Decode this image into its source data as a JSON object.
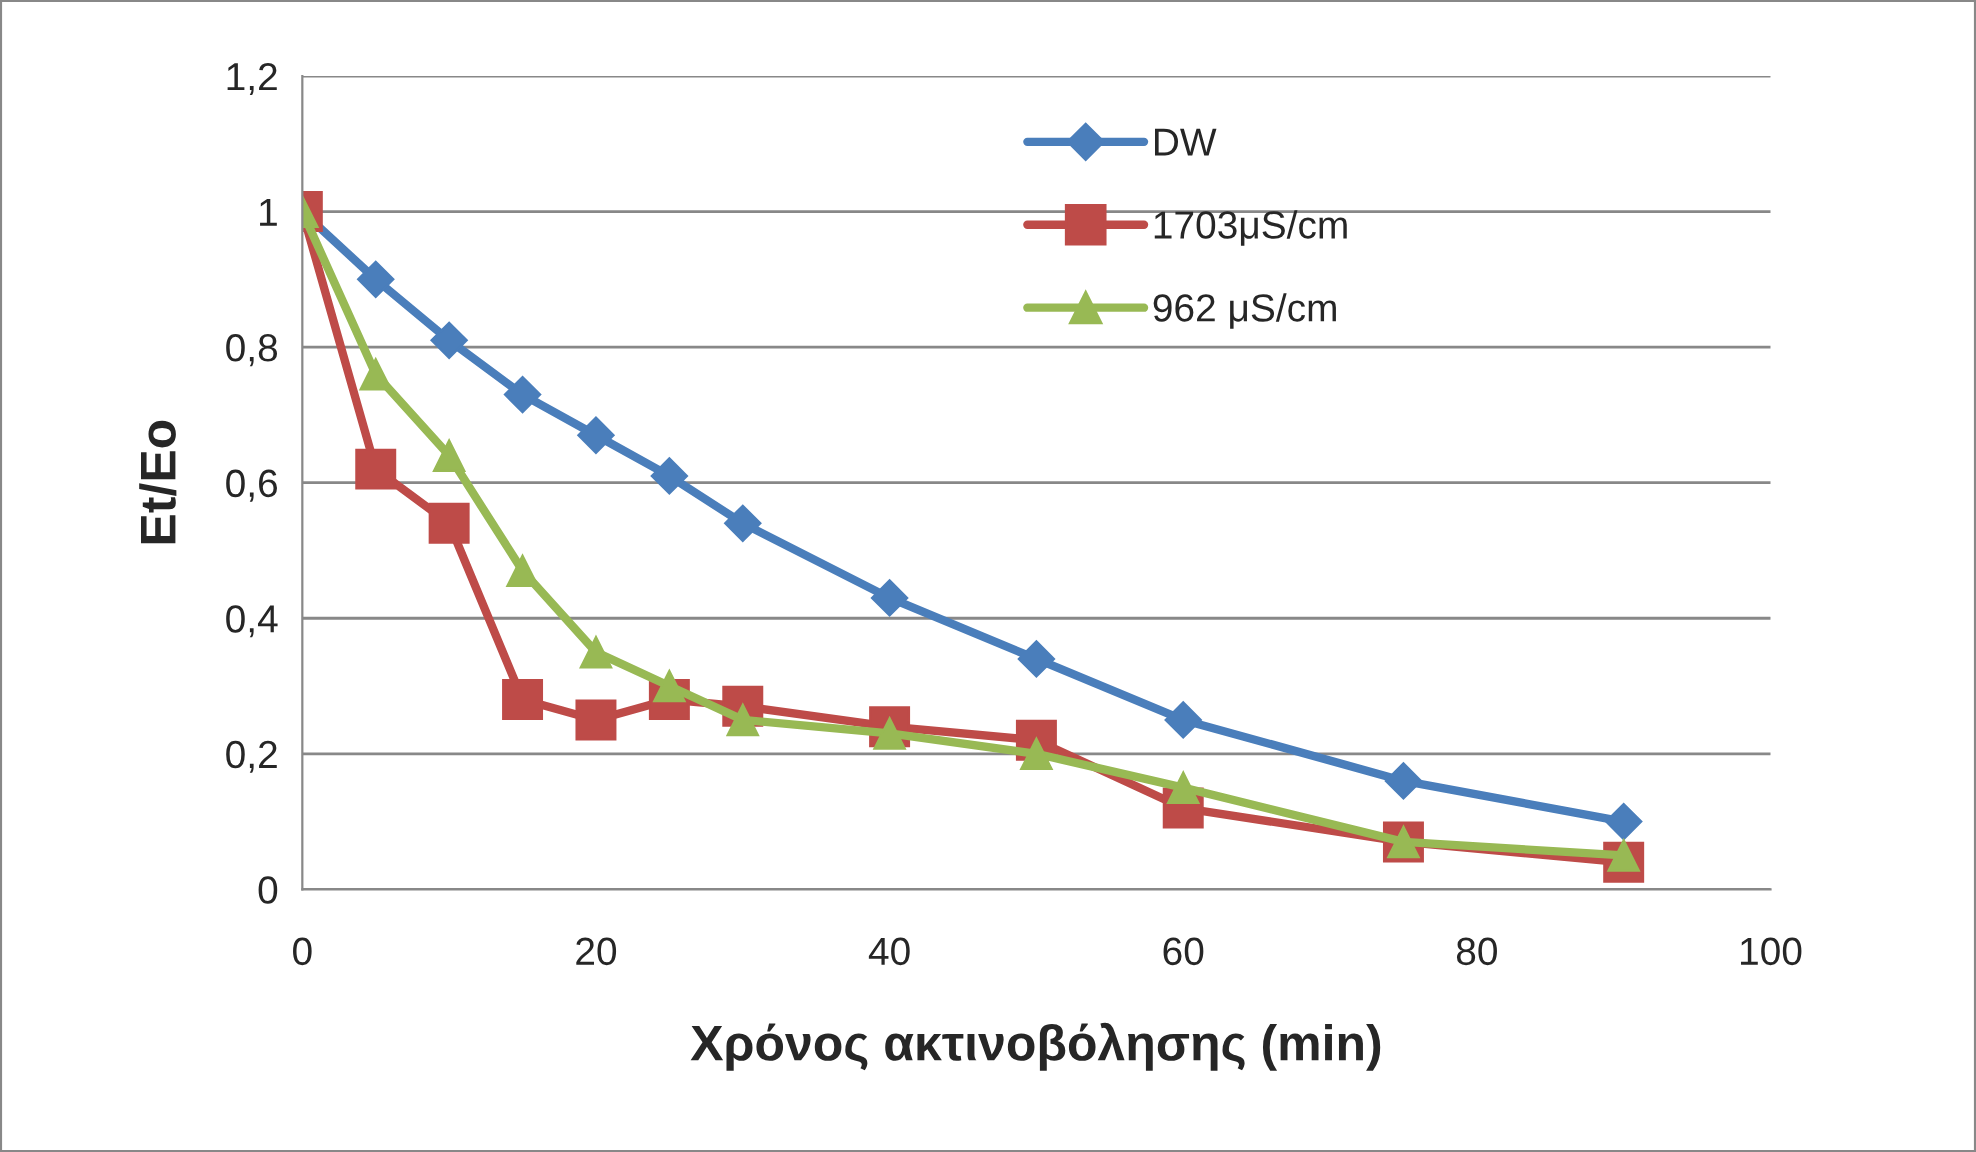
{
  "chart_data": {
    "type": "line",
    "xlabel": "Χρόνος ακτινοβόλησης (min)",
    "ylabel": "Et/Eo",
    "x": [
      0,
      5,
      10,
      15,
      20,
      25,
      30,
      40,
      50,
      60,
      75,
      90
    ],
    "series": [
      {
        "name": "DW",
        "color": "#4a7ebb",
        "marker": "diamond",
        "values": [
          1,
          0.9,
          0.81,
          0.73,
          0.67,
          0.61,
          0.54,
          0.43,
          0.34,
          0.25,
          0.16,
          0.1
        ]
      },
      {
        "name": "1703μS/cm",
        "color": "#be4b48",
        "marker": "square",
        "values": [
          1,
          0.62,
          0.54,
          0.28,
          0.25,
          0.28,
          0.27,
          0.24,
          0.22,
          0.12,
          0.07,
          0.04
        ]
      },
      {
        "name": "962 μS/cm",
        "color": "#98b954",
        "marker": "triangle",
        "values": [
          1,
          0.76,
          0.64,
          0.47,
          0.35,
          0.3,
          0.25,
          0.23,
          0.2,
          0.15,
          0.07,
          0.05
        ]
      }
    ],
    "xlim": [
      0,
      100
    ],
    "xticks": [
      0,
      20,
      40,
      60,
      80,
      100
    ],
    "ylim": [
      0,
      1.2
    ],
    "yticks": [
      0,
      {
        "value": 0.2,
        "label": "0,2"
      },
      {
        "value": 0.4,
        "label": "0,4"
      },
      {
        "value": 0.6,
        "label": "0,6"
      },
      {
        "value": 0.8,
        "label": "0,8"
      },
      1,
      {
        "value": 1.2,
        "label": "1,2"
      }
    ],
    "grid": "y",
    "legend": "top",
    "line_style": "solid"
  }
}
